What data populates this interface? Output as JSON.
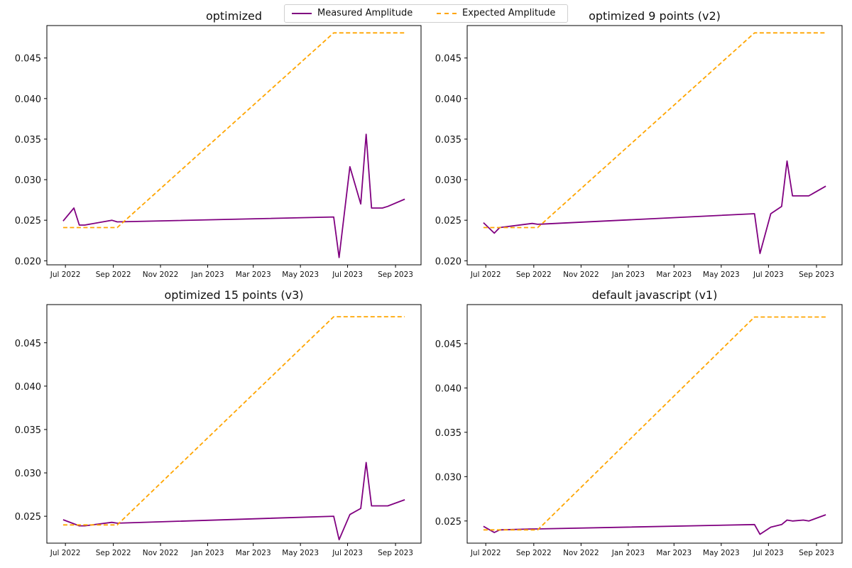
{
  "legend": {
    "measured_label": "Measured Amplitude",
    "expected_label": "Expected Amplitude"
  },
  "colors": {
    "measured": "#800080",
    "expected": "#FFA500"
  },
  "chart_data": [
    {
      "type": "line",
      "title": "optimized",
      "xlabel": "",
      "ylabel": "",
      "x_type": "date",
      "xlim": [
        "2022-06-07",
        "2023-10-04"
      ],
      "ylim": [
        0.0195,
        0.049
      ],
      "xticks": [
        "Jul 2022",
        "Sep 2022",
        "Nov 2022",
        "Jan 2023",
        "Mar 2023",
        "May 2023",
        "Jul 2023",
        "Sep 2023"
      ],
      "yticks": [
        "0.020",
        "0.025",
        "0.030",
        "0.035",
        "0.040",
        "0.045"
      ],
      "series": [
        {
          "name": "Measured Amplitude",
          "style": "solid",
          "x": [
            "2022-06-28",
            "2022-07-12",
            "2022-07-19",
            "2022-07-26",
            "2022-08-30",
            "2022-09-06",
            "2023-06-13",
            "2023-06-20",
            "2023-07-04",
            "2023-07-18",
            "2023-07-25",
            "2023-08-01",
            "2023-08-15",
            "2023-08-22",
            "2023-09-13"
          ],
          "y": [
            0.0249,
            0.0265,
            0.0244,
            0.0244,
            0.025,
            0.0248,
            0.0254,
            0.0204,
            0.0316,
            0.027,
            0.0356,
            0.0265,
            0.0265,
            0.0267,
            0.0276
          ]
        },
        {
          "name": "Expected Amplitude",
          "style": "dashed",
          "x": [
            "2022-06-28",
            "2022-09-06",
            "2023-06-13",
            "2023-09-13"
          ],
          "y": [
            0.0241,
            0.0241,
            0.0481,
            0.0481
          ]
        }
      ]
    },
    {
      "type": "line",
      "title": "optimized 9 points (v2)",
      "xlabel": "",
      "ylabel": "",
      "x_type": "date",
      "xlim": [
        "2022-06-07",
        "2023-10-04"
      ],
      "ylim": [
        0.0195,
        0.049
      ],
      "xticks": [
        "Jul 2022",
        "Sep 2022",
        "Nov 2022",
        "Jan 2023",
        "Mar 2023",
        "May 2023",
        "Jul 2023",
        "Sep 2023"
      ],
      "yticks": [
        "0.020",
        "0.025",
        "0.030",
        "0.035",
        "0.040",
        "0.045"
      ],
      "series": [
        {
          "name": "Measured Amplitude",
          "style": "solid",
          "x": [
            "2022-06-28",
            "2022-07-12",
            "2022-07-19",
            "2022-08-30",
            "2022-09-06",
            "2023-06-13",
            "2023-06-20",
            "2023-07-04",
            "2023-07-18",
            "2023-07-25",
            "2023-08-01",
            "2023-08-22",
            "2023-09-13"
          ],
          "y": [
            0.0247,
            0.0234,
            0.0241,
            0.0246,
            0.0245,
            0.0258,
            0.0209,
            0.0258,
            0.0267,
            0.0323,
            0.028,
            0.028,
            0.0292
          ]
        },
        {
          "name": "Expected Amplitude",
          "style": "dashed",
          "x": [
            "2022-06-28",
            "2022-09-06",
            "2023-06-13",
            "2023-09-13"
          ],
          "y": [
            0.0241,
            0.0241,
            0.0481,
            0.0481
          ]
        }
      ]
    },
    {
      "type": "line",
      "title": "optimized 15 points (v3)",
      "xlabel": "",
      "ylabel": "",
      "x_type": "date",
      "xlim": [
        "2022-06-07",
        "2023-10-04"
      ],
      "ylim": [
        0.0219,
        0.0494
      ],
      "xticks": [
        "Jul 2022",
        "Sep 2022",
        "Nov 2022",
        "Jan 2023",
        "Mar 2023",
        "May 2023",
        "Jul 2023",
        "Sep 2023"
      ],
      "yticks": [
        "0.025",
        "0.030",
        "0.035",
        "0.040",
        "0.045"
      ],
      "series": [
        {
          "name": "Measured Amplitude",
          "style": "solid",
          "x": [
            "2022-06-28",
            "2022-07-19",
            "2022-07-26",
            "2022-08-30",
            "2022-09-06",
            "2023-06-13",
            "2023-06-20",
            "2023-07-04",
            "2023-07-18",
            "2023-07-25",
            "2023-08-01",
            "2023-08-22",
            "2023-09-13"
          ],
          "y": [
            0.0246,
            0.0239,
            0.0239,
            0.0243,
            0.0242,
            0.025,
            0.0223,
            0.0252,
            0.0259,
            0.0312,
            0.0262,
            0.0262,
            0.0269
          ]
        },
        {
          "name": "Expected Amplitude",
          "style": "dashed",
          "x": [
            "2022-06-28",
            "2022-09-06",
            "2023-06-13",
            "2023-09-13"
          ],
          "y": [
            0.024,
            0.024,
            0.048,
            0.048
          ]
        }
      ]
    },
    {
      "type": "line",
      "title": "default javascript (v1)",
      "xlabel": "",
      "ylabel": "",
      "x_type": "date",
      "xlim": [
        "2022-06-07",
        "2023-10-04"
      ],
      "ylim": [
        0.0225,
        0.0494
      ],
      "xticks": [
        "Jul 2022",
        "Sep 2022",
        "Nov 2022",
        "Jan 2023",
        "Mar 2023",
        "May 2023",
        "Jul 2023",
        "Sep 2023"
      ],
      "yticks": [
        "0.025",
        "0.030",
        "0.035",
        "0.040",
        "0.045"
      ],
      "series": [
        {
          "name": "Measured Amplitude",
          "style": "solid",
          "x": [
            "2022-06-28",
            "2022-07-12",
            "2022-07-19",
            "2022-08-30",
            "2022-09-06",
            "2023-06-13",
            "2023-06-20",
            "2023-07-04",
            "2023-07-18",
            "2023-07-25",
            "2023-08-01",
            "2023-08-15",
            "2023-08-22",
            "2023-09-13"
          ],
          "y": [
            0.0244,
            0.0237,
            0.024,
            0.0241,
            0.0241,
            0.0246,
            0.0235,
            0.0243,
            0.0246,
            0.0251,
            0.025,
            0.0251,
            0.025,
            0.0257
          ]
        },
        {
          "name": "Expected Amplitude",
          "style": "dashed",
          "x": [
            "2022-06-28",
            "2022-09-06",
            "2023-06-13",
            "2023-09-13"
          ],
          "y": [
            0.024,
            0.024,
            0.048,
            0.048
          ]
        }
      ]
    }
  ]
}
